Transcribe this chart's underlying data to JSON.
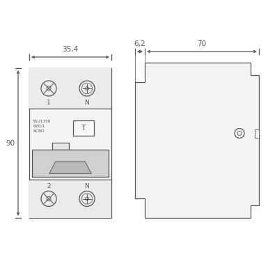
{
  "bg_color": "#ffffff",
  "line_color": "#555555",
  "fill_body": "#f4f4f4",
  "fill_terminal": "#ebebeb",
  "fill_handle": "#d0d0d0",
  "fill_handle_inner": "#b8b8b8",
  "fill_side": "#f4f4f4",
  "fig_width": 3.85,
  "fig_height": 3.85,
  "dpi": 100,
  "dim_354_text": "35,4",
  "dim_62_text": "6,2",
  "dim_70_text": "70",
  "dim_90_text": "90",
  "label_1": "1",
  "label_N_top": "N",
  "label_2": "2",
  "label_N_bot": "N",
  "label_T": "T",
  "text_line1": "5SU1356",
  "text_line2": "B20/1",
  "text_line3": "RCBO"
}
